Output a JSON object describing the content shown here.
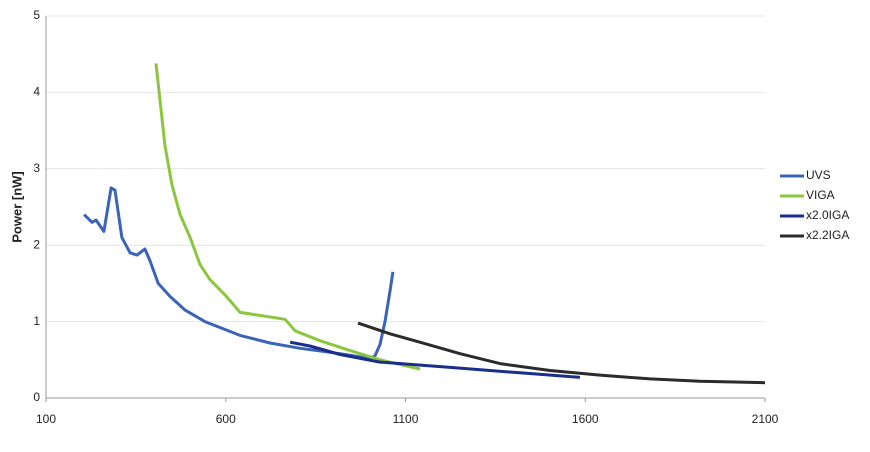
{
  "chart_data": {
    "type": "line",
    "ylabel": "Power [nW]",
    "xlim": [
      100,
      2100
    ],
    "xticks": [
      100,
      600,
      1100,
      1600,
      2100
    ],
    "ylim": [
      0,
      5
    ],
    "yticks": [
      0,
      1,
      2,
      3,
      4,
      5
    ],
    "grid": true,
    "legend": "right",
    "series": [
      {
        "name": "UVS",
        "color": "#3b63b8",
        "x": [
          206,
          228,
          239,
          261,
          281,
          292,
          311,
          334,
          353,
          375,
          389,
          412,
          445,
          487,
          542,
          640,
          723,
          807,
          918,
          1001,
          1015,
          1029,
          1043,
          1057,
          1065
        ],
        "values": [
          2.4,
          2.3,
          2.33,
          2.18,
          2.75,
          2.72,
          2.1,
          1.9,
          1.87,
          1.95,
          1.8,
          1.5,
          1.33,
          1.15,
          1.0,
          0.82,
          0.72,
          0.65,
          0.58,
          0.52,
          0.55,
          0.7,
          1.0,
          1.4,
          1.65
        ]
      },
      {
        "name": "VIGA",
        "color": "#8cc63e",
        "x": [
          406,
          417,
          431,
          450,
          473,
          501,
          528,
          556,
          598,
          640,
          765,
          793,
          862,
          946,
          1029,
          1140
        ],
        "values": [
          4.38,
          3.9,
          3.3,
          2.8,
          2.4,
          2.1,
          1.75,
          1.55,
          1.35,
          1.12,
          1.03,
          0.88,
          0.75,
          0.62,
          0.5,
          0.38
        ]
      },
      {
        "name": "x2.0IGA",
        "color": "#1a2e8c",
        "x": [
          779,
          834,
          918,
          1029,
          1224,
          1418,
          1585
        ],
        "values": [
          0.73,
          0.68,
          0.57,
          0.47,
          0.4,
          0.33,
          0.27
        ]
      },
      {
        "name": "x2.2IGA",
        "color": "#2b2b2b",
        "x": [
          968,
          1057,
          1140,
          1252,
          1363,
          1502,
          1641,
          1780,
          1919,
          2100
        ],
        "values": [
          0.98,
          0.84,
          0.73,
          0.58,
          0.45,
          0.36,
          0.3,
          0.25,
          0.22,
          0.2
        ]
      }
    ]
  }
}
